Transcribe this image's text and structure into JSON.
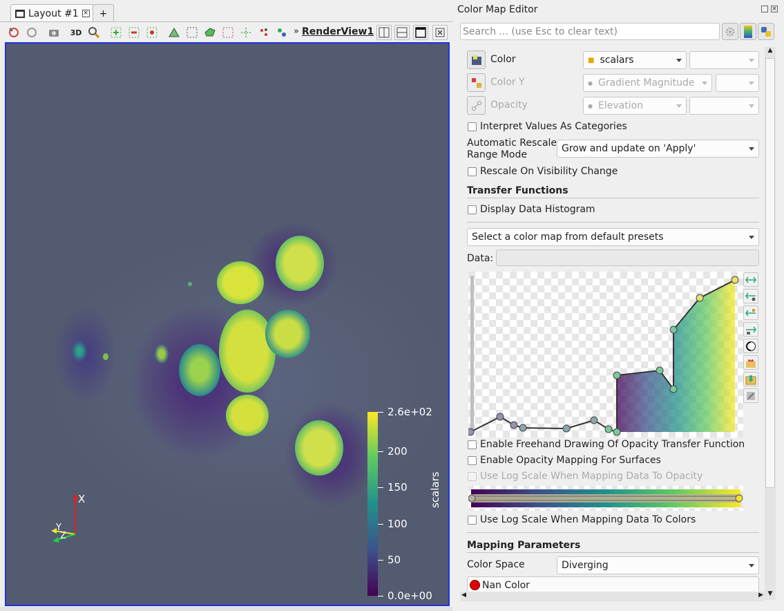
{
  "layout_tab": {
    "label": "Layout #1",
    "add_label": "+"
  },
  "toolbar": {
    "three_d_label": "3D",
    "more_label": "»",
    "view_name": "RenderView1"
  },
  "colorbar": {
    "title": "scalars",
    "ticks": [
      "2.6e+02",
      "200",
      "150",
      "100",
      "50",
      "0.0e+00"
    ]
  },
  "axes": {
    "x": "X",
    "y": "Y",
    "z": "Z"
  },
  "panel": {
    "title": "Color Map Editor",
    "search_placeholder": "Search ... (use Esc to clear text)",
    "color_row": {
      "label": "Color",
      "value": "scalars"
    },
    "color_y_row": {
      "label": "Color Y",
      "value": "Gradient Magnitude"
    },
    "opacity_row": {
      "label": "Opacity",
      "value": "Elevation"
    },
    "interpret_categories": "Interpret Values As Categories",
    "auto_rescale_label_1": "Automatic Rescale",
    "auto_rescale_label_2": "Range Mode",
    "auto_rescale_value": "Grow and update on 'Apply'",
    "rescale_visibility": "Rescale On Visibility Change",
    "transfer_functions_title": "Transfer Functions",
    "display_histogram": "Display Data Histogram",
    "preset_value": "Select a color map from default presets",
    "data_label": "Data:",
    "data_value": "",
    "freehand": "Enable Freehand Drawing Of Opacity Transfer Function",
    "opacity_surfaces": "Enable Opacity Mapping For Surfaces",
    "log_opacity": "Use Log Scale When Mapping Data To Opacity",
    "log_colors": "Use Log Scale When Mapping Data To Colors",
    "mapping_title": "Mapping Parameters",
    "color_space_label": "Color Space",
    "color_space_value": "Diverging",
    "nan_color_label": "Nan Color"
  },
  "colors": {
    "render_bg": "#535b70",
    "viewport_border": "#1f33e0",
    "nan_color": "#e00000",
    "viridis_low": "#440154",
    "viridis_mid": "#21918c",
    "viridis_high": "#fde725"
  }
}
